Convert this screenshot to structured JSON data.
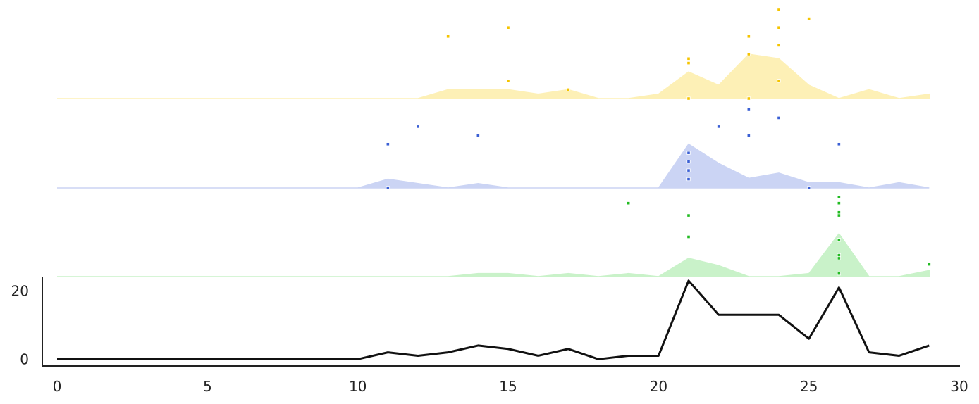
{
  "chart_data": {
    "type": "area",
    "x_axis": {
      "ticks": [
        0,
        5,
        10,
        15,
        20,
        25,
        30
      ],
      "xlim": [
        -0.5,
        30
      ]
    },
    "ridges": [
      {
        "color": "#f5c400",
        "fill": "#fdf0b6",
        "x": [
          0,
          1,
          2,
          3,
          4,
          5,
          6,
          7,
          8,
          9,
          10,
          11,
          12,
          13,
          14,
          15,
          16,
          17,
          18,
          19,
          20,
          21,
          22,
          23,
          24,
          25,
          26,
          27,
          28,
          29
        ],
        "area": [
          0,
          0,
          0,
          0,
          0,
          0,
          0,
          0,
          0,
          0,
          0,
          0,
          0,
          1,
          1,
          1,
          0.5,
          1,
          0,
          0,
          0.5,
          3,
          1.5,
          5,
          4.5,
          1.5,
          0,
          1,
          0,
          0.5
        ],
        "points": [
          [
            13,
            7
          ],
          [
            15,
            8
          ],
          [
            15,
            2
          ],
          [
            17,
            1
          ],
          [
            21,
            4
          ],
          [
            21,
            4.5
          ],
          [
            21,
            0
          ],
          [
            23,
            5
          ],
          [
            23,
            7
          ],
          [
            23,
            0
          ],
          [
            24,
            6
          ],
          [
            24,
            8
          ],
          [
            24,
            10
          ],
          [
            24,
            2
          ],
          [
            25,
            9
          ]
        ],
        "ylim": [
          0,
          10
        ]
      },
      {
        "color": "#3a5fd4",
        "fill": "#cbd4f4",
        "x": [
          0,
          1,
          2,
          3,
          4,
          5,
          6,
          7,
          8,
          9,
          10,
          11,
          12,
          13,
          14,
          15,
          16,
          17,
          18,
          19,
          20,
          21,
          22,
          23,
          24,
          25,
          26,
          27,
          28,
          29
        ],
        "area": [
          0,
          0,
          0,
          0,
          0,
          0,
          0,
          0,
          0,
          0,
          0,
          1,
          0.5,
          0,
          0.5,
          0,
          0,
          0,
          0,
          0,
          0,
          5,
          2.8,
          1.1,
          1.7,
          0.6,
          0.6,
          0,
          0.6,
          0
        ],
        "points": [
          [
            11,
            5
          ],
          [
            11,
            0
          ],
          [
            12,
            7
          ],
          [
            14,
            6
          ],
          [
            21,
            4
          ],
          [
            21,
            3
          ],
          [
            21,
            2
          ],
          [
            21,
            1
          ],
          [
            22,
            7
          ],
          [
            23,
            6
          ],
          [
            23,
            9
          ],
          [
            24,
            8
          ],
          [
            25,
            0
          ],
          [
            26,
            5
          ]
        ],
        "ylim": [
          0,
          9
        ]
      },
      {
        "color": "#22bb22",
        "fill": "#c9f2c9",
        "x": [
          0,
          1,
          2,
          3,
          4,
          5,
          6,
          7,
          8,
          9,
          10,
          11,
          12,
          13,
          14,
          15,
          16,
          17,
          18,
          19,
          20,
          21,
          22,
          23,
          24,
          25,
          26,
          27,
          28,
          29
        ],
        "area": [
          0,
          0,
          0,
          0,
          0,
          0,
          0,
          0,
          0,
          0,
          0,
          0,
          0,
          0,
          0.5,
          0.5,
          0,
          0.5,
          0,
          0.5,
          0,
          3,
          1.8,
          0,
          0,
          0.5,
          7,
          0,
          0,
          1
        ],
        "points": [
          [
            19,
            12
          ],
          [
            21,
            10
          ],
          [
            21,
            6.5
          ],
          [
            26,
            13
          ],
          [
            26,
            12
          ],
          [
            26,
            10.5
          ],
          [
            26,
            10
          ],
          [
            26,
            6
          ],
          [
            26,
            3.5
          ],
          [
            26,
            3
          ],
          [
            26,
            0.5
          ],
          [
            29,
            2
          ]
        ],
        "ylim": [
          0,
          13
        ]
      }
    ],
    "line": {
      "color": "#111111",
      "x": [
        0,
        1,
        2,
        3,
        4,
        5,
        6,
        7,
        8,
        9,
        10,
        11,
        12,
        13,
        14,
        15,
        16,
        17,
        18,
        19,
        20,
        21,
        22,
        23,
        24,
        25,
        26,
        27,
        28,
        29
      ],
      "y": [
        0,
        0,
        0,
        0,
        0,
        0,
        0,
        0,
        0,
        0,
        0,
        2,
        1,
        2,
        4,
        3,
        1,
        3,
        0,
        1,
        1,
        23,
        13,
        13,
        13,
        6,
        21,
        2,
        1,
        4
      ],
      "ylim": [
        -2,
        24
      ],
      "yticks": [
        0,
        20
      ]
    }
  }
}
